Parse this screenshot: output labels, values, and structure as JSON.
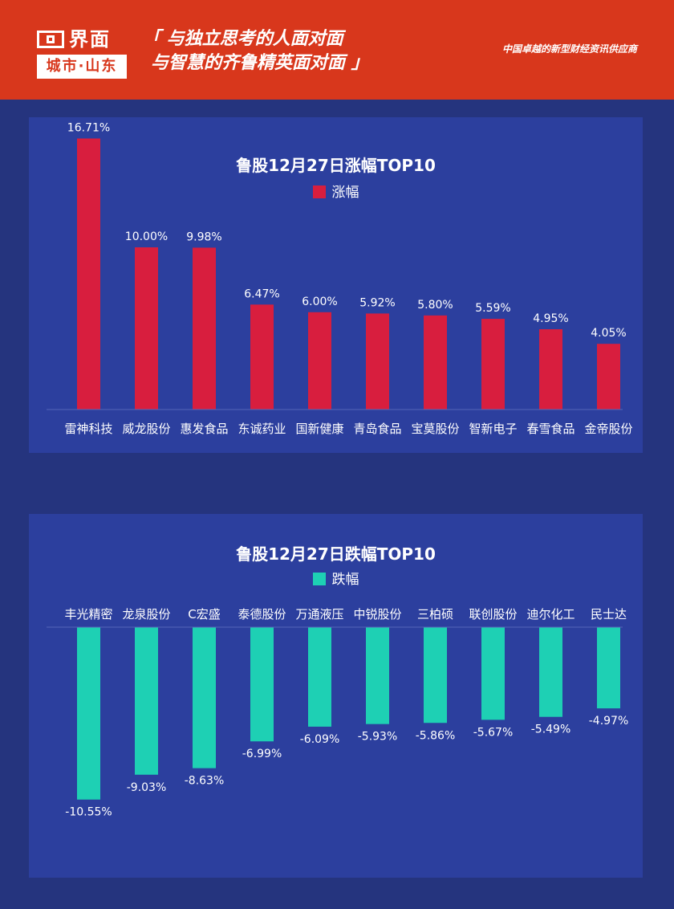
{
  "header": {
    "logo_name": "界面",
    "logo_city": "城市·山东",
    "slogan_line1": "「 与独立思考的人面对面",
    "slogan_line2": "与智慧的齐鲁精英面对面 」",
    "tagline": "中国卓越的新型财经资讯供应商"
  },
  "chart_data": [
    {
      "type": "bar",
      "title": "鲁股12月27日涨幅TOP10",
      "legend_position": "top-center",
      "categories": [
        "雷神科技",
        "威龙股份",
        "惠发食品",
        "东诚药业",
        "国新健康",
        "青岛食品",
        "宝莫股份",
        "智新电子",
        "春雪食品",
        "金帝股份"
      ],
      "series": [
        {
          "name": "涨幅",
          "color": "#d81e3e",
          "values": [
            16.71,
            10.0,
            9.98,
            6.47,
            6.0,
            5.92,
            5.8,
            5.59,
            4.95,
            4.05
          ],
          "labels": [
            "16.71%",
            "10.00%",
            "9.98%",
            "6.47%",
            "6.00%",
            "5.92%",
            "5.80%",
            "5.59%",
            "4.95%",
            "4.05%"
          ]
        }
      ],
      "ylim": [
        0,
        17
      ],
      "grid": false
    },
    {
      "type": "bar",
      "title": "鲁股12月27日跌幅TOP10",
      "legend_position": "top-center",
      "categories": [
        "丰光精密",
        "龙泉股份",
        "C宏盛",
        "泰德股份",
        "万通液压",
        "中锐股份",
        "三柏硕",
        "联创股份",
        "迪尔化工",
        "民士达"
      ],
      "series": [
        {
          "name": "跌幅",
          "color": "#1ed0b4",
          "values": [
            -10.55,
            -9.03,
            -8.63,
            -6.99,
            -6.09,
            -5.93,
            -5.86,
            -5.67,
            -5.49,
            -4.97
          ],
          "labels": [
            "-10.55%",
            "-9.03%",
            "-8.63%",
            "-6.99%",
            "-6.09%",
            "-5.93%",
            "-5.86%",
            "-5.67%",
            "-5.49%",
            "-4.97%"
          ]
        }
      ],
      "ylim": [
        -11,
        0
      ],
      "grid": false
    }
  ]
}
